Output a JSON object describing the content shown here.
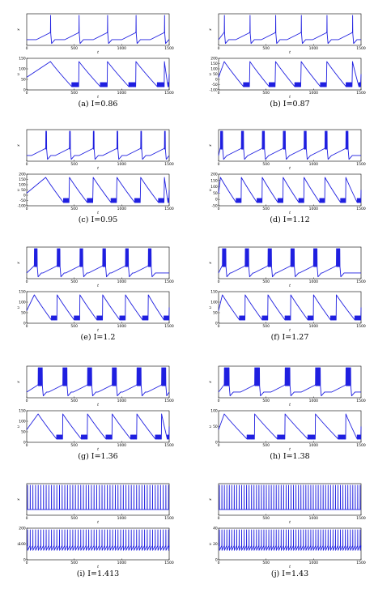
{
  "figure": {
    "x_axis_label": "t",
    "x_ticks": [
      "0",
      "500",
      "1000",
      "1500"
    ],
    "captions": [
      "(a) I=0.86",
      "(b) I=0.87",
      "(c) I=0.95",
      "(d) I=1.12",
      "(e) I=1.2",
      "(f) I=1.27",
      "(g) I=1.36",
      "(h) I=1.38",
      "(i) I=1.413",
      "(j) I=1.43"
    ]
  },
  "chart_data": [
    {
      "type": "line",
      "panel": "a",
      "I": 0.86,
      "xlim": [
        0,
        1500
      ],
      "top": {
        "ylabel": "x",
        "bursts": [
          250,
          550,
          850,
          1150,
          1450
        ],
        "spikes_per_burst": 1
      },
      "bottom": {
        "ylabel": "u",
        "yticks": [
          "0",
          "50",
          "100",
          "150"
        ],
        "ylim": [
          0,
          150
        ]
      }
    },
    {
      "type": "line",
      "panel": "b",
      "I": 0.87,
      "xlim": [
        0,
        1500
      ],
      "top": {
        "ylabel": "x",
        "bursts": [
          60,
          330,
          600,
          870,
          1140,
          1410
        ],
        "spikes_per_burst": 1
      },
      "bottom": {
        "ylabel": "u",
        "yticks": [
          "-100",
          "-50",
          "0",
          "50",
          "100",
          "150",
          "200"
        ],
        "ylim": [
          -100,
          200
        ]
      }
    },
    {
      "type": "line",
      "panel": "c",
      "I": 0.95,
      "xlim": [
        0,
        1500
      ],
      "top": {
        "ylabel": "x",
        "bursts": [
          200,
          450,
          700,
          950,
          1200,
          1450
        ],
        "spikes_per_burst": 2
      },
      "bottom": {
        "ylabel": "u",
        "yticks": [
          "-100",
          "-50",
          "0",
          "50",
          "100",
          "150",
          "200"
        ],
        "ylim": [
          -100,
          200
        ]
      }
    },
    {
      "type": "line",
      "panel": "d",
      "I": 1.12,
      "xlim": [
        0,
        1500
      ],
      "top": {
        "ylabel": "x",
        "bursts": [
          20,
          240,
          460,
          680,
          900,
          1120,
          1340
        ],
        "spikes_per_burst": 4
      },
      "bottom": {
        "ylabel": "u",
        "yticks": [
          "-50",
          "0",
          "50",
          "100",
          "150",
          "200"
        ],
        "ylim": [
          -50,
          200
        ]
      }
    },
    {
      "type": "line",
      "panel": "e",
      "I": 1.2,
      "xlim": [
        0,
        1500
      ],
      "top": {
        "ylabel": "x",
        "bursts": [
          80,
          320,
          560,
          800,
          1040,
          1280
        ],
        "spikes_per_burst": 5
      },
      "bottom": {
        "ylabel": "u",
        "yticks": [
          "0",
          "50",
          "100",
          "150"
        ],
        "ylim": [
          0,
          150
        ]
      }
    },
    {
      "type": "line",
      "panel": "f",
      "I": 1.27,
      "xlim": [
        0,
        1500
      ],
      "top": {
        "ylabel": "x",
        "bursts": [
          40,
          280,
          520,
          760,
          1000,
          1240
        ],
        "spikes_per_burst": 6
      },
      "bottom": {
        "ylabel": "u",
        "yticks": [
          "0",
          "50",
          "100",
          "150"
        ],
        "ylim": [
          0,
          150
        ]
      }
    },
    {
      "type": "line",
      "panel": "g",
      "I": 1.36,
      "xlim": [
        0,
        1500
      ],
      "top": {
        "ylabel": "x",
        "bursts": [
          120,
          380,
          640,
          900,
          1160,
          1420
        ],
        "spikes_per_burst": 7
      },
      "bottom": {
        "ylabel": "u",
        "yticks": [
          "0",
          "50",
          "100",
          "150"
        ],
        "ylim": [
          0,
          150
        ]
      }
    },
    {
      "type": "line",
      "panel": "h",
      "I": 1.38,
      "xlim": [
        0,
        1500
      ],
      "top": {
        "ylabel": "x",
        "bursts": [
          60,
          380,
          700,
          1020,
          1340
        ],
        "spikes_per_burst": 8
      },
      "bottom": {
        "ylabel": "u",
        "yticks": [
          "0",
          "50",
          "100"
        ],
        "ylim": [
          0,
          100
        ]
      }
    },
    {
      "type": "line",
      "panel": "i",
      "I": 1.413,
      "xlim": [
        0,
        1500
      ],
      "top": {
        "ylabel": "x",
        "tonic_period": 28
      },
      "bottom": {
        "ylabel": "u",
        "yticks": [
          "0",
          "100",
          "200"
        ],
        "ylim": [
          0,
          200
        ]
      }
    },
    {
      "type": "line",
      "panel": "j",
      "I": 1.43,
      "xlim": [
        0,
        1500
      ],
      "top": {
        "ylabel": "x",
        "tonic_period": 26
      },
      "bottom": {
        "ylabel": "u",
        "yticks": [
          "0",
          "20",
          "40"
        ],
        "ylim": [
          0,
          40
        ]
      }
    }
  ]
}
